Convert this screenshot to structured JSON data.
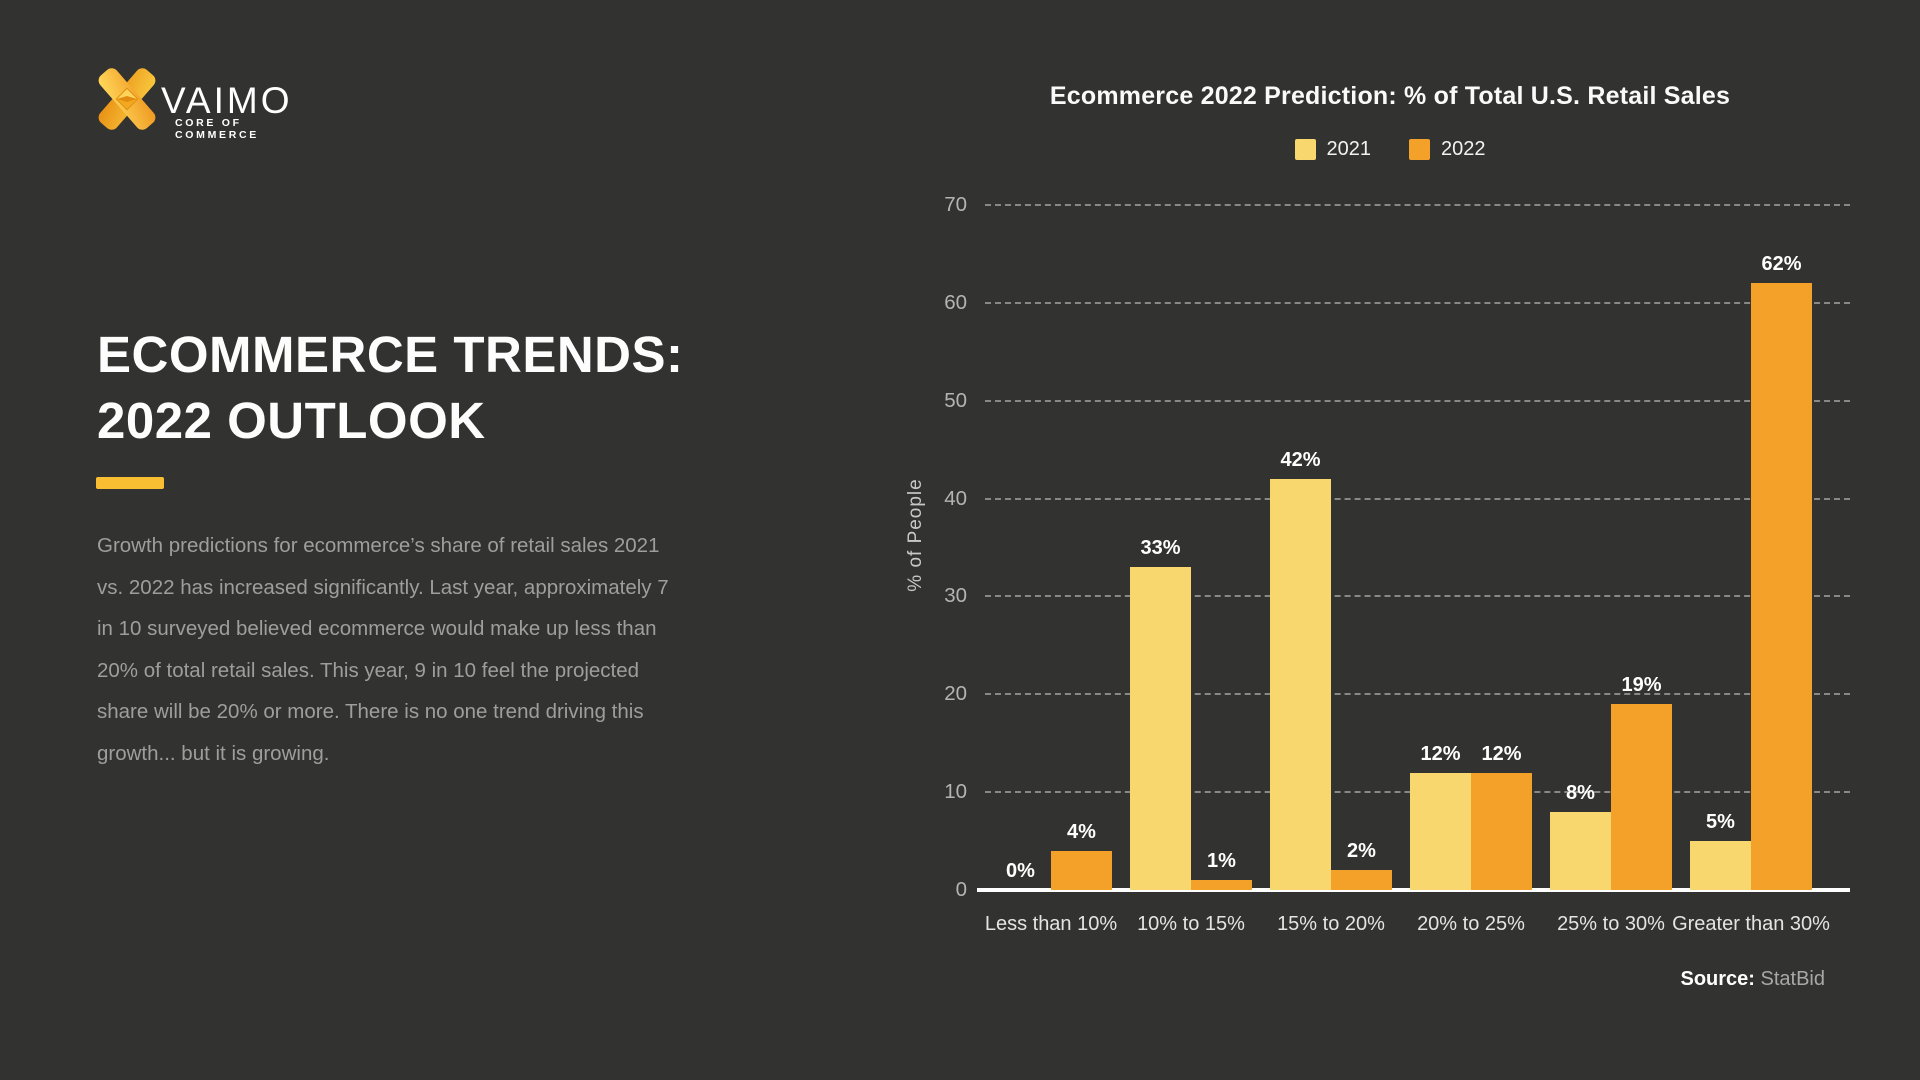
{
  "brand": {
    "name": "VAIMO",
    "tagline": "CORE OF COMMERCE"
  },
  "left_panel": {
    "heading_line1": "ECOMMERCE TRENDS:",
    "heading_line2": "2022 OUTLOOK",
    "paragraph_lines": [
      "Growth predictions for ecommerce’s share of retail sales 2021",
      "vs. 2022 has increased significantly. Last year, approximately 7",
      "in 10 surveyed believed ecommerce would make up less than",
      "20% of total retail sales. This year, 9 in 10 feel the projected",
      "share will be 20% or more. There is no one trend driving this",
      "growth... but it is growing."
    ]
  },
  "chart": {
    "title": "Ecommerce 2022 Prediction: % of Total U.S. Retail Sales",
    "y_axis_label": "% of People",
    "source_label": "Source:",
    "source_value": "StatBid",
    "legend": [
      {
        "label": "2021",
        "color": "#F8D76F"
      },
      {
        "label": "2022",
        "color": "#F4A129"
      }
    ]
  },
  "chart_data": {
    "type": "bar",
    "title": "Ecommerce 2022 Prediction: % of Total U.S. Retail Sales",
    "categories": [
      "Less than 10%",
      "10% to 15%",
      "15% to 20%",
      "20% to 25%",
      "25% to 30%",
      "Greater than 30%"
    ],
    "series": [
      {
        "name": "2021",
        "color": "#F8D76F",
        "values": [
          0,
          33,
          42,
          12,
          8,
          5
        ]
      },
      {
        "name": "2022",
        "color": "#F4A129",
        "values": [
          4,
          1,
          2,
          12,
          19,
          62
        ]
      }
    ],
    "value_labels": [
      [
        "0%",
        "33%",
        "42%",
        "12%",
        "8%",
        "5%"
      ],
      [
        "4%",
        "1%",
        "2%",
        "12%",
        "19%",
        "62%"
      ]
    ],
    "xlabel": "",
    "ylabel": "% of People",
    "ylim": [
      0,
      70
    ],
    "yticks": [
      0,
      10,
      20,
      30,
      40,
      50,
      60,
      70
    ],
    "grid": "horizontal-dashed",
    "legend_position": "top",
    "source": "StatBid"
  },
  "colors": {
    "background": "#323230",
    "series_2021": "#F8D76F",
    "series_2022": "#F4A129",
    "title_underline": "#F9BE32",
    "logo_gradient_light": "#FFD95C",
    "logo_gradient_dark": "#EF9820"
  }
}
